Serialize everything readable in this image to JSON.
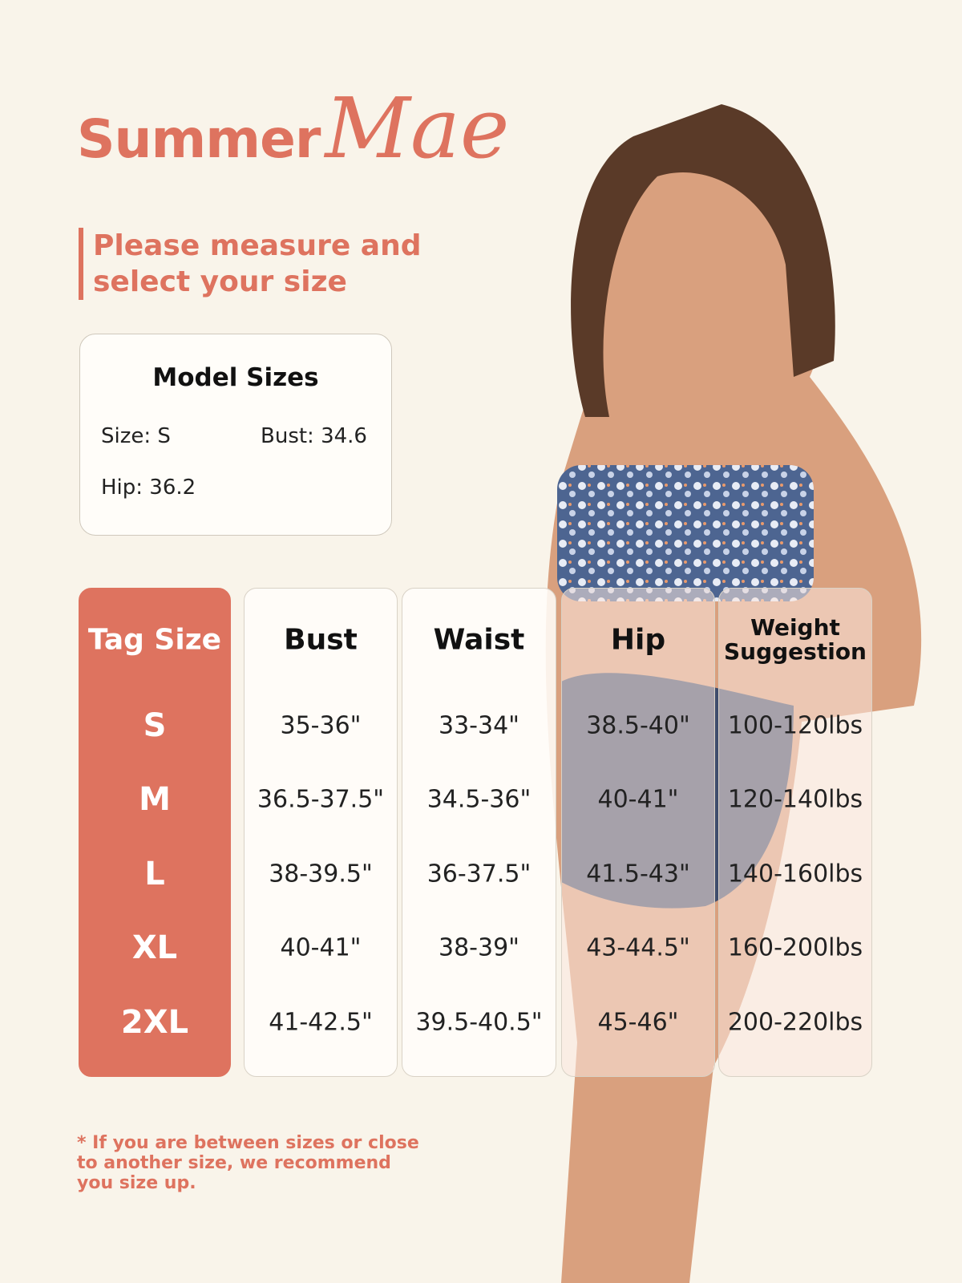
{
  "brand": {
    "part1": "Summer",
    "part2": "Mae",
    "color": "#de735f"
  },
  "headline": "Please measure and select your size",
  "model_sizes": {
    "title": "Model Sizes",
    "size": "Size: S",
    "bust": "Bust: 34.6",
    "hip": "Hip: 36.2"
  },
  "table": {
    "headers": [
      "Tag Size",
      "Bust",
      "Waist",
      "Hip",
      "Weight Suggestion"
    ],
    "rows": [
      [
        "S",
        "35-36\"",
        "33-34\"",
        "38.5-40\"",
        "100-120lbs"
      ],
      [
        "M",
        "36.5-37.5\"",
        "34.5-36\"",
        "40-41\"",
        "120-140lbs"
      ],
      [
        "L",
        "38-39.5\"",
        "36-37.5\"",
        "41.5-43\"",
        "140-160lbs"
      ],
      [
        "XL",
        "40-41\"",
        "38-39\"",
        "43-44.5\"",
        "160-200lbs"
      ],
      [
        "2XL",
        "41-42.5\"",
        "39.5-40.5\"",
        "45-46\"",
        "200-220lbs"
      ]
    ]
  },
  "note": "* If you are between sizes or close to another size, we recommend you size up."
}
